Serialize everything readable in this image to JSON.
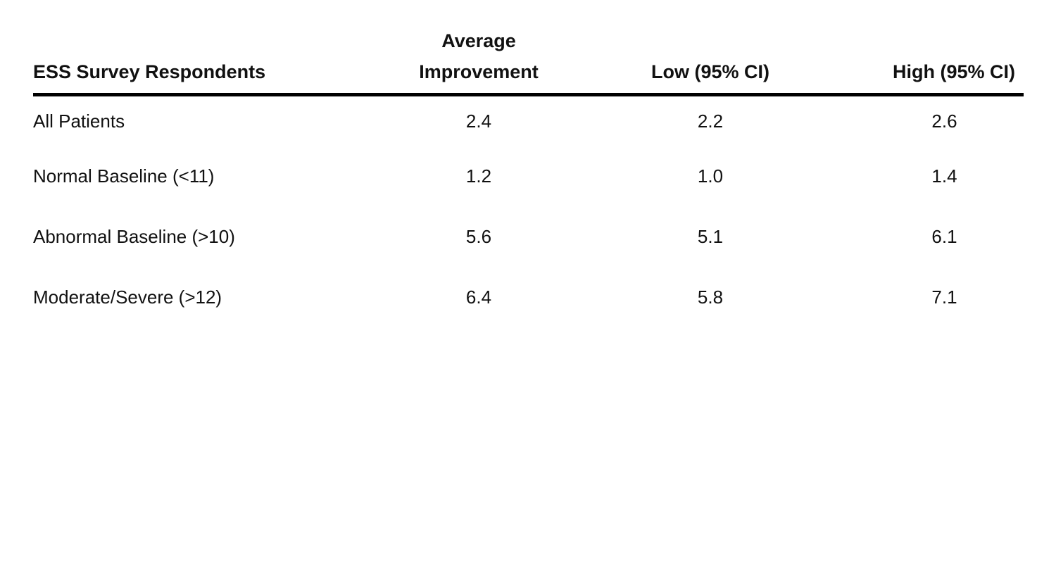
{
  "chart_data": {
    "type": "table",
    "columns": [
      [
        "ESS Survey Respondents"
      ],
      [
        "Average",
        "Improvement"
      ],
      [
        "Low (95% CI)"
      ],
      [
        "High (95% CI)"
      ]
    ],
    "rows": [
      {
        "label": "All Patients",
        "values": [
          "2.4",
          "2.2",
          "2.6"
        ]
      },
      {
        "label": "Normal Baseline (<11)",
        "values": [
          "1.2",
          "1.0",
          "1.4"
        ]
      },
      {
        "label": "Abnormal Baseline (>10)",
        "values": [
          "5.6",
          "5.1",
          "6.1"
        ]
      },
      {
        "label": "Moderate/Severe (>12)",
        "values": [
          "6.4",
          "5.8",
          "7.1"
        ]
      }
    ]
  }
}
